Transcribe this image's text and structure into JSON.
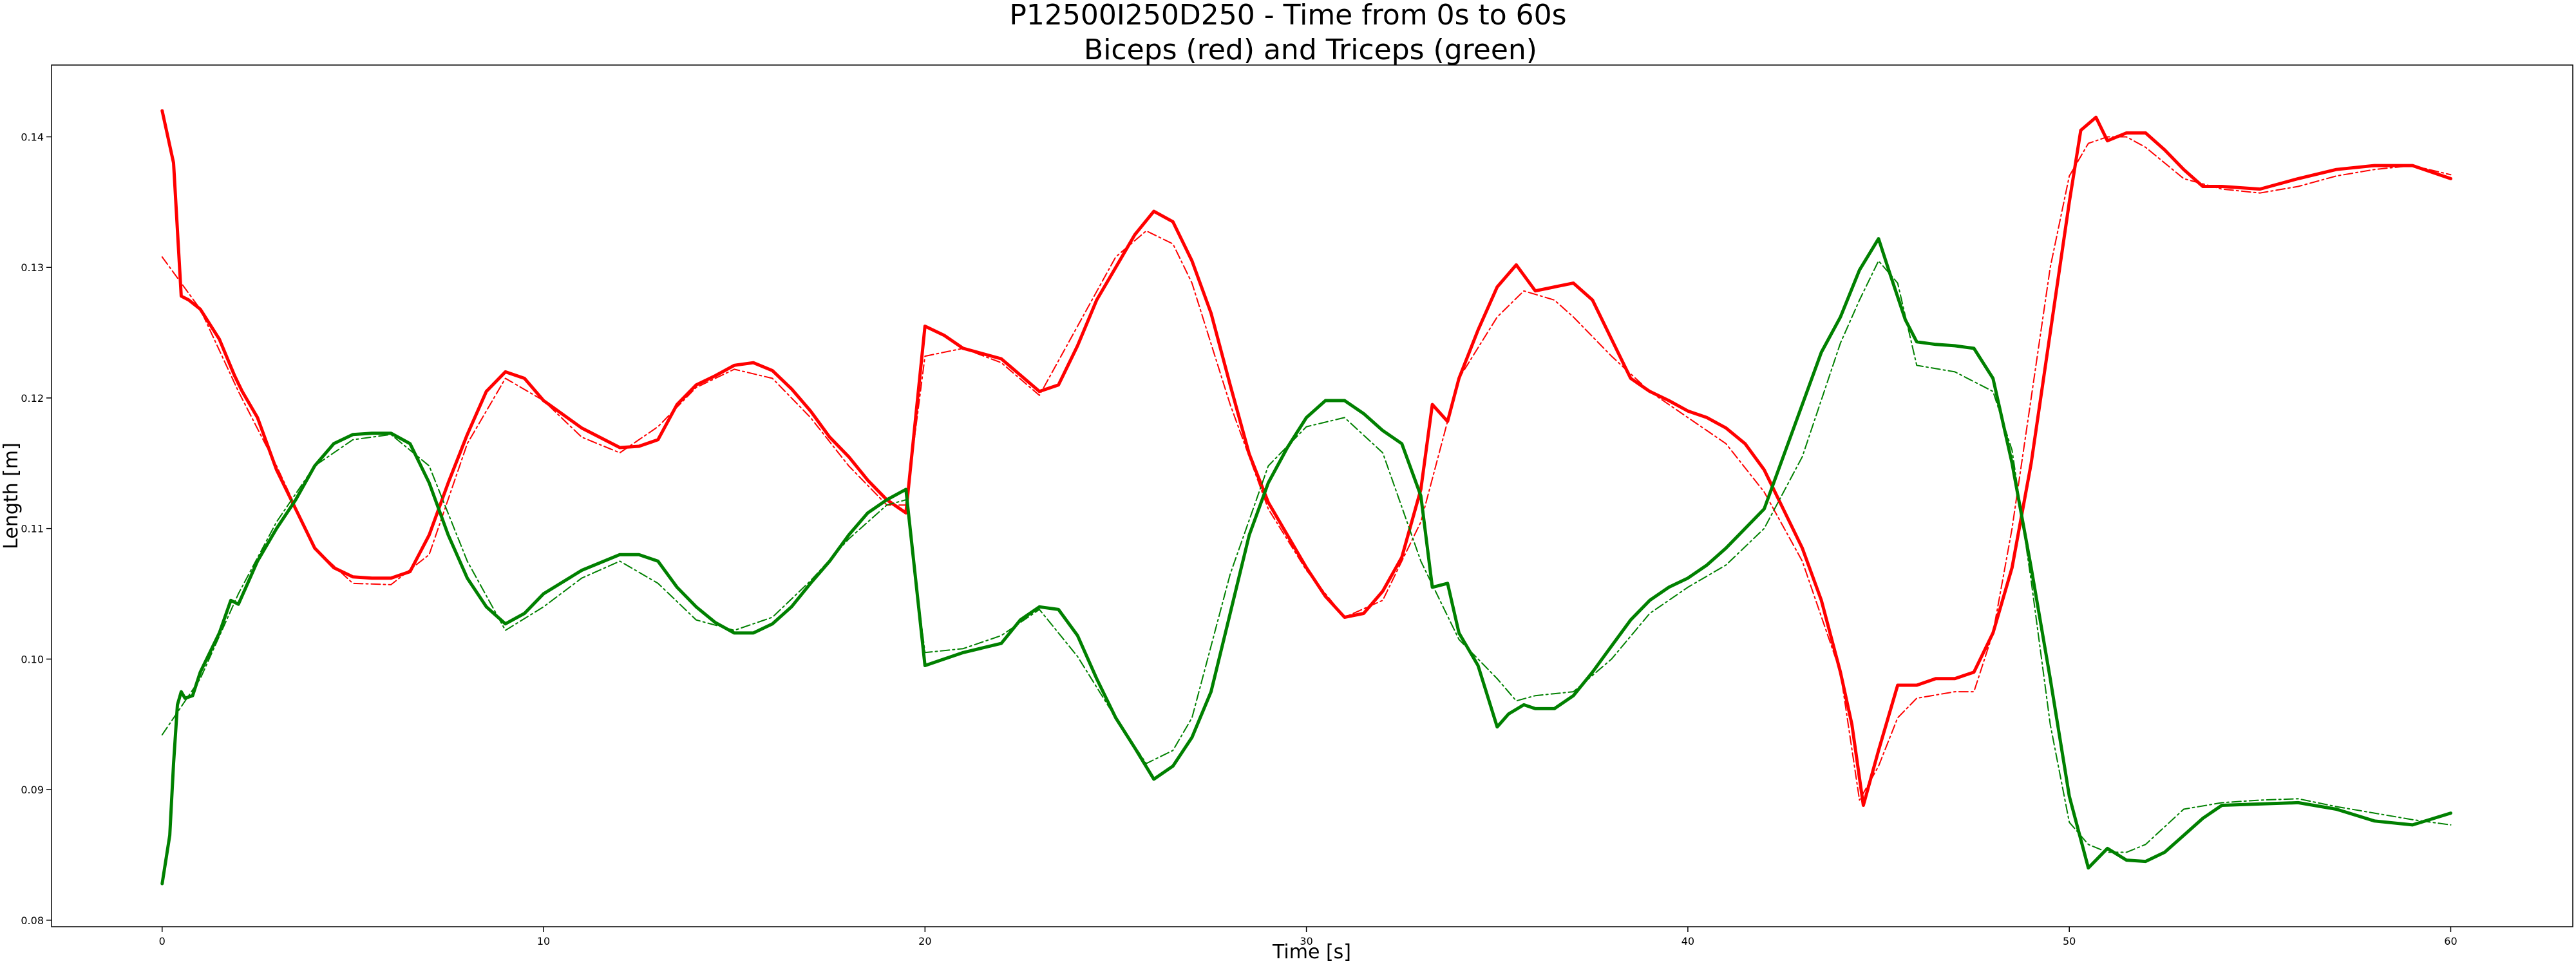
{
  "chart_data": {
    "type": "line",
    "title": "P12500I250D250 - Time from 0s to 60s",
    "subtitle": "Biceps (red) and Triceps (green)",
    "xlabel": "Time [s]",
    "ylabel": "Length [m]",
    "xlim": [
      -2.9,
      63.2
    ],
    "ylim": [
      0.0795,
      0.1455
    ],
    "xticks": [
      0,
      10,
      20,
      30,
      40,
      50,
      60
    ],
    "yticks": [
      0.08,
      0.09,
      0.1,
      0.11,
      0.12,
      0.13,
      0.14
    ],
    "xtick_labels": [
      "0",
      "10",
      "20",
      "30",
      "40",
      "50",
      "60"
    ],
    "ytick_labels": [
      "0.08",
      "0.09",
      "0.10",
      "0.11",
      "0.12",
      "0.13",
      "0.14"
    ],
    "grid": false,
    "legend": false,
    "series": [
      {
        "color": "#ff0000",
        "style": "solid",
        "x": [
          0,
          0.3,
          0.5,
          0.7,
          1.0,
          1.5,
          1.9,
          2.1,
          2.5,
          3.0,
          3.5,
          4.0,
          4.5,
          5.0,
          5.5,
          6.0,
          6.5,
          7.0,
          7.5,
          8.0,
          8.5,
          9.0,
          9.5,
          10.0,
          11.0,
          12.0,
          12.5,
          13.0,
          13.5,
          14.0,
          14.5,
          15.0,
          15.5,
          16.0,
          16.5,
          17.0,
          17.5,
          18.0,
          18.5,
          19.0,
          19.5,
          20.0,
          20.5,
          21.0,
          22.0,
          23.0,
          23.5,
          24.0,
          24.5,
          25.0,
          25.5,
          26.0,
          26.5,
          27.0,
          27.5,
          28.0,
          28.5,
          29.0,
          29.5,
          30.0,
          30.5,
          31.0,
          31.5,
          32.0,
          32.5,
          33.0,
          33.3,
          33.7,
          34.0,
          34.5,
          35.0,
          35.5,
          36.0,
          36.5,
          37.0,
          37.5,
          38.0,
          38.5,
          39.0,
          39.5,
          40.0,
          40.5,
          41.0,
          41.5,
          42.0,
          42.5,
          43.0,
          43.5,
          44.0,
          44.3,
          44.6,
          45.0,
          45.5,
          46.0,
          46.5,
          47.0,
          47.5,
          48.0,
          48.5,
          49.0,
          49.5,
          50.0,
          50.3,
          50.7,
          51.0,
          51.5,
          52.0,
          52.5,
          53.0,
          53.5,
          54.0,
          55.0,
          56.0,
          57.0,
          58.0,
          59.0,
          60.0
        ],
        "values": [
          0.142,
          0.138,
          0.1278,
          0.1275,
          0.1268,
          0.1245,
          0.1217,
          0.1205,
          0.1185,
          0.1145,
          0.1115,
          0.1085,
          0.107,
          0.1063,
          0.1062,
          0.1062,
          0.1067,
          0.1095,
          0.1135,
          0.1172,
          0.1205,
          0.122,
          0.1215,
          0.1198,
          0.1177,
          0.1162,
          0.1163,
          0.1168,
          0.1195,
          0.121,
          0.1217,
          0.1225,
          0.1227,
          0.1221,
          0.1207,
          0.119,
          0.117,
          0.1155,
          0.1137,
          0.1122,
          0.1112,
          0.1255,
          0.1248,
          0.1238,
          0.123,
          0.1205,
          0.121,
          0.124,
          0.1275,
          0.13,
          0.1325,
          0.1343,
          0.1335,
          0.1305,
          0.1265,
          0.121,
          0.1157,
          0.112,
          0.1095,
          0.107,
          0.1048,
          0.1032,
          0.1035,
          0.1052,
          0.1078,
          0.113,
          0.1195,
          0.1182,
          0.1215,
          0.1252,
          0.1285,
          0.1302,
          0.1282,
          0.1285,
          0.1288,
          0.1275,
          0.1245,
          0.1215,
          0.1205,
          0.1198,
          0.119,
          0.1185,
          0.1177,
          0.1165,
          0.1145,
          0.1115,
          0.1085,
          0.1045,
          0.099,
          0.095,
          0.0888,
          0.093,
          0.098,
          0.098,
          0.0985,
          0.0985,
          0.099,
          0.102,
          0.107,
          0.115,
          0.125,
          0.135,
          0.1405,
          0.1415,
          0.1397,
          0.1403,
          0.1403,
          0.139,
          0.1375,
          0.1362,
          0.1362,
          0.136,
          0.1368,
          0.1375,
          0.1378,
          0.1378,
          0.1368
        ]
      },
      {
        "color": "#ff0000",
        "style": "dashdot",
        "x": [
          0,
          1.0,
          2.0,
          3.0,
          4.0,
          5.0,
          6.0,
          7.0,
          8.0,
          9.0,
          10.0,
          11.0,
          12.0,
          13.0,
          14.0,
          15.0,
          16.0,
          17.0,
          18.0,
          19.0,
          19.5,
          20.0,
          21.0,
          22.0,
          23.0,
          24.0,
          25.0,
          25.8,
          26.5,
          27.0,
          28.0,
          29.0,
          30.0,
          31.0,
          32.0,
          33.0,
          34.0,
          35.0,
          35.7,
          36.5,
          37.0,
          38.0,
          39.0,
          40.0,
          41.0,
          42.0,
          43.0,
          44.0,
          44.5,
          45.0,
          45.5,
          46.0,
          47.0,
          47.5,
          48.0,
          48.5,
          49.0,
          49.5,
          50.0,
          50.5,
          51.0,
          51.5,
          52.0,
          53.0,
          54.0,
          55.0,
          56.0,
          57.0,
          58.0,
          59.0,
          60.0
        ],
        "values": [
          0.1308,
          0.1268,
          0.1205,
          0.1148,
          0.1085,
          0.1058,
          0.1057,
          0.108,
          0.1165,
          0.1215,
          0.1198,
          0.117,
          0.1158,
          0.1178,
          0.1208,
          0.1222,
          0.1215,
          0.1185,
          0.1148,
          0.1118,
          0.1118,
          0.1232,
          0.1238,
          0.1227,
          0.1202,
          0.1255,
          0.1308,
          0.1328,
          0.1318,
          0.1288,
          0.1195,
          0.1115,
          0.1068,
          0.1032,
          0.1045,
          0.1105,
          0.1215,
          0.1262,
          0.1282,
          0.1275,
          0.1262,
          0.1232,
          0.1205,
          0.1185,
          0.1165,
          0.1128,
          0.1075,
          0.099,
          0.0892,
          0.0918,
          0.0955,
          0.097,
          0.0975,
          0.0975,
          0.102,
          0.11,
          0.12,
          0.13,
          0.137,
          0.1395,
          0.14,
          0.14,
          0.1392,
          0.1368,
          0.136,
          0.1357,
          0.1362,
          0.137,
          0.1375,
          0.1378,
          0.1371
        ]
      },
      {
        "color": "#008000",
        "style": "solid",
        "x": [
          0,
          0.2,
          0.3,
          0.4,
          0.5,
          0.6,
          0.8,
          1.0,
          1.5,
          1.8,
          2.0,
          2.5,
          3.0,
          3.5,
          4.0,
          4.5,
          5.0,
          5.5,
          6.0,
          6.5,
          7.0,
          7.5,
          8.0,
          8.5,
          9.0,
          9.5,
          10.0,
          11.0,
          12.0,
          12.5,
          13.0,
          13.5,
          14.0,
          14.5,
          15.0,
          15.5,
          16.0,
          16.5,
          17.0,
          17.5,
          18.0,
          18.5,
          19.0,
          19.5,
          20.0,
          20.5,
          21.0,
          22.0,
          22.5,
          23.0,
          23.5,
          24.0,
          24.5,
          25.0,
          25.5,
          26.0,
          26.5,
          27.0,
          27.5,
          28.0,
          28.5,
          29.0,
          29.5,
          30.0,
          30.5,
          31.0,
          31.5,
          32.0,
          32.5,
          33.0,
          33.3,
          33.7,
          34.0,
          34.5,
          35.0,
          35.3,
          35.7,
          36.0,
          36.5,
          37.0,
          37.5,
          38.0,
          38.5,
          39.0,
          39.5,
          40.0,
          40.5,
          41.0,
          41.5,
          42.0,
          42.5,
          43.0,
          43.5,
          44.0,
          44.5,
          45.0,
          45.3,
          45.7,
          46.0,
          46.5,
          47.0,
          47.5,
          48.0,
          48.5,
          49.0,
          49.5,
          50.0,
          50.5,
          51.0,
          51.5,
          52.0,
          52.5,
          53.0,
          53.5,
          54.0,
          55.0,
          56.0,
          57.0,
          58.0,
          59.0,
          60.0
        ],
        "values": [
          0.0828,
          0.0865,
          0.092,
          0.0965,
          0.0975,
          0.097,
          0.0972,
          0.099,
          0.102,
          0.1045,
          0.1042,
          0.1075,
          0.11,
          0.1122,
          0.1148,
          0.1165,
          0.1172,
          0.1173,
          0.1173,
          0.1165,
          0.1135,
          0.1095,
          0.1062,
          0.104,
          0.1027,
          0.1035,
          0.105,
          0.1068,
          0.108,
          0.108,
          0.1075,
          0.1055,
          0.104,
          0.1028,
          0.102,
          0.102,
          0.1027,
          0.104,
          0.1058,
          0.1075,
          0.1095,
          0.1112,
          0.1122,
          0.113,
          0.0995,
          0.1,
          0.1005,
          0.1012,
          0.103,
          0.104,
          0.1038,
          0.1018,
          0.0985,
          0.0955,
          0.0932,
          0.0908,
          0.0918,
          0.094,
          0.0975,
          0.1035,
          0.1095,
          0.1135,
          0.1162,
          0.1185,
          0.1198,
          0.1198,
          0.1188,
          0.1175,
          0.1165,
          0.1125,
          0.1055,
          0.1058,
          0.102,
          0.0995,
          0.0948,
          0.0958,
          0.0965,
          0.0962,
          0.0962,
          0.0972,
          0.099,
          0.101,
          0.103,
          0.1045,
          0.1055,
          0.1062,
          0.1072,
          0.1085,
          0.11,
          0.1115,
          0.1155,
          0.1195,
          0.1235,
          0.1262,
          0.1298,
          0.1322,
          0.1295,
          0.126,
          0.1243,
          0.1241,
          0.124,
          0.1238,
          0.1215,
          0.115,
          0.107,
          0.0985,
          0.0895,
          0.084,
          0.0855,
          0.0846,
          0.0845,
          0.0852,
          0.0865,
          0.0878,
          0.0888,
          0.0889,
          0.089,
          0.0885,
          0.0876,
          0.0873,
          0.0882
        ]
      },
      {
        "color": "#008000",
        "style": "dashdot",
        "x": [
          0,
          1.0,
          2.0,
          3.0,
          4.0,
          5.0,
          6.0,
          7.0,
          8.0,
          9.0,
          10.0,
          11.0,
          12.0,
          13.0,
          14.0,
          15.0,
          16.0,
          17.0,
          18.0,
          19.0,
          19.5,
          20.0,
          21.0,
          22.0,
          23.0,
          24.0,
          25.0,
          25.8,
          26.5,
          27.0,
          28.0,
          29.0,
          30.0,
          31.0,
          32.0,
          33.0,
          34.0,
          35.0,
          35.5,
          36.0,
          37.0,
          38.0,
          39.0,
          40.0,
          41.0,
          42.0,
          43.0,
          44.0,
          44.5,
          45.0,
          45.5,
          46.0,
          47.0,
          48.0,
          48.5,
          49.0,
          49.5,
          50.0,
          50.5,
          51.0,
          51.5,
          52.0,
          53.0,
          54.0,
          55.0,
          56.0,
          57.0,
          58.0,
          59.0,
          60.0
        ],
        "values": [
          0.0942,
          0.0985,
          0.105,
          0.1105,
          0.1148,
          0.1168,
          0.1172,
          0.1148,
          0.1075,
          0.1022,
          0.104,
          0.1062,
          0.1075,
          0.1058,
          0.103,
          0.1022,
          0.1032,
          0.106,
          0.1092,
          0.1118,
          0.1122,
          0.1005,
          0.1008,
          0.1018,
          0.1038,
          0.1002,
          0.0955,
          0.092,
          0.093,
          0.0955,
          0.1065,
          0.1148,
          0.1178,
          0.1185,
          0.1158,
          0.1075,
          0.1015,
          0.0985,
          0.0968,
          0.0972,
          0.0975,
          0.1,
          0.1035,
          0.1055,
          0.1072,
          0.11,
          0.1155,
          0.1242,
          0.1275,
          0.1305,
          0.1288,
          0.1225,
          0.122,
          0.1205,
          0.116,
          0.106,
          0.095,
          0.0875,
          0.0858,
          0.0852,
          0.0852,
          0.0858,
          0.0885,
          0.089,
          0.0892,
          0.0893,
          0.0887,
          0.0882,
          0.0877,
          0.0873
        ]
      }
    ]
  }
}
